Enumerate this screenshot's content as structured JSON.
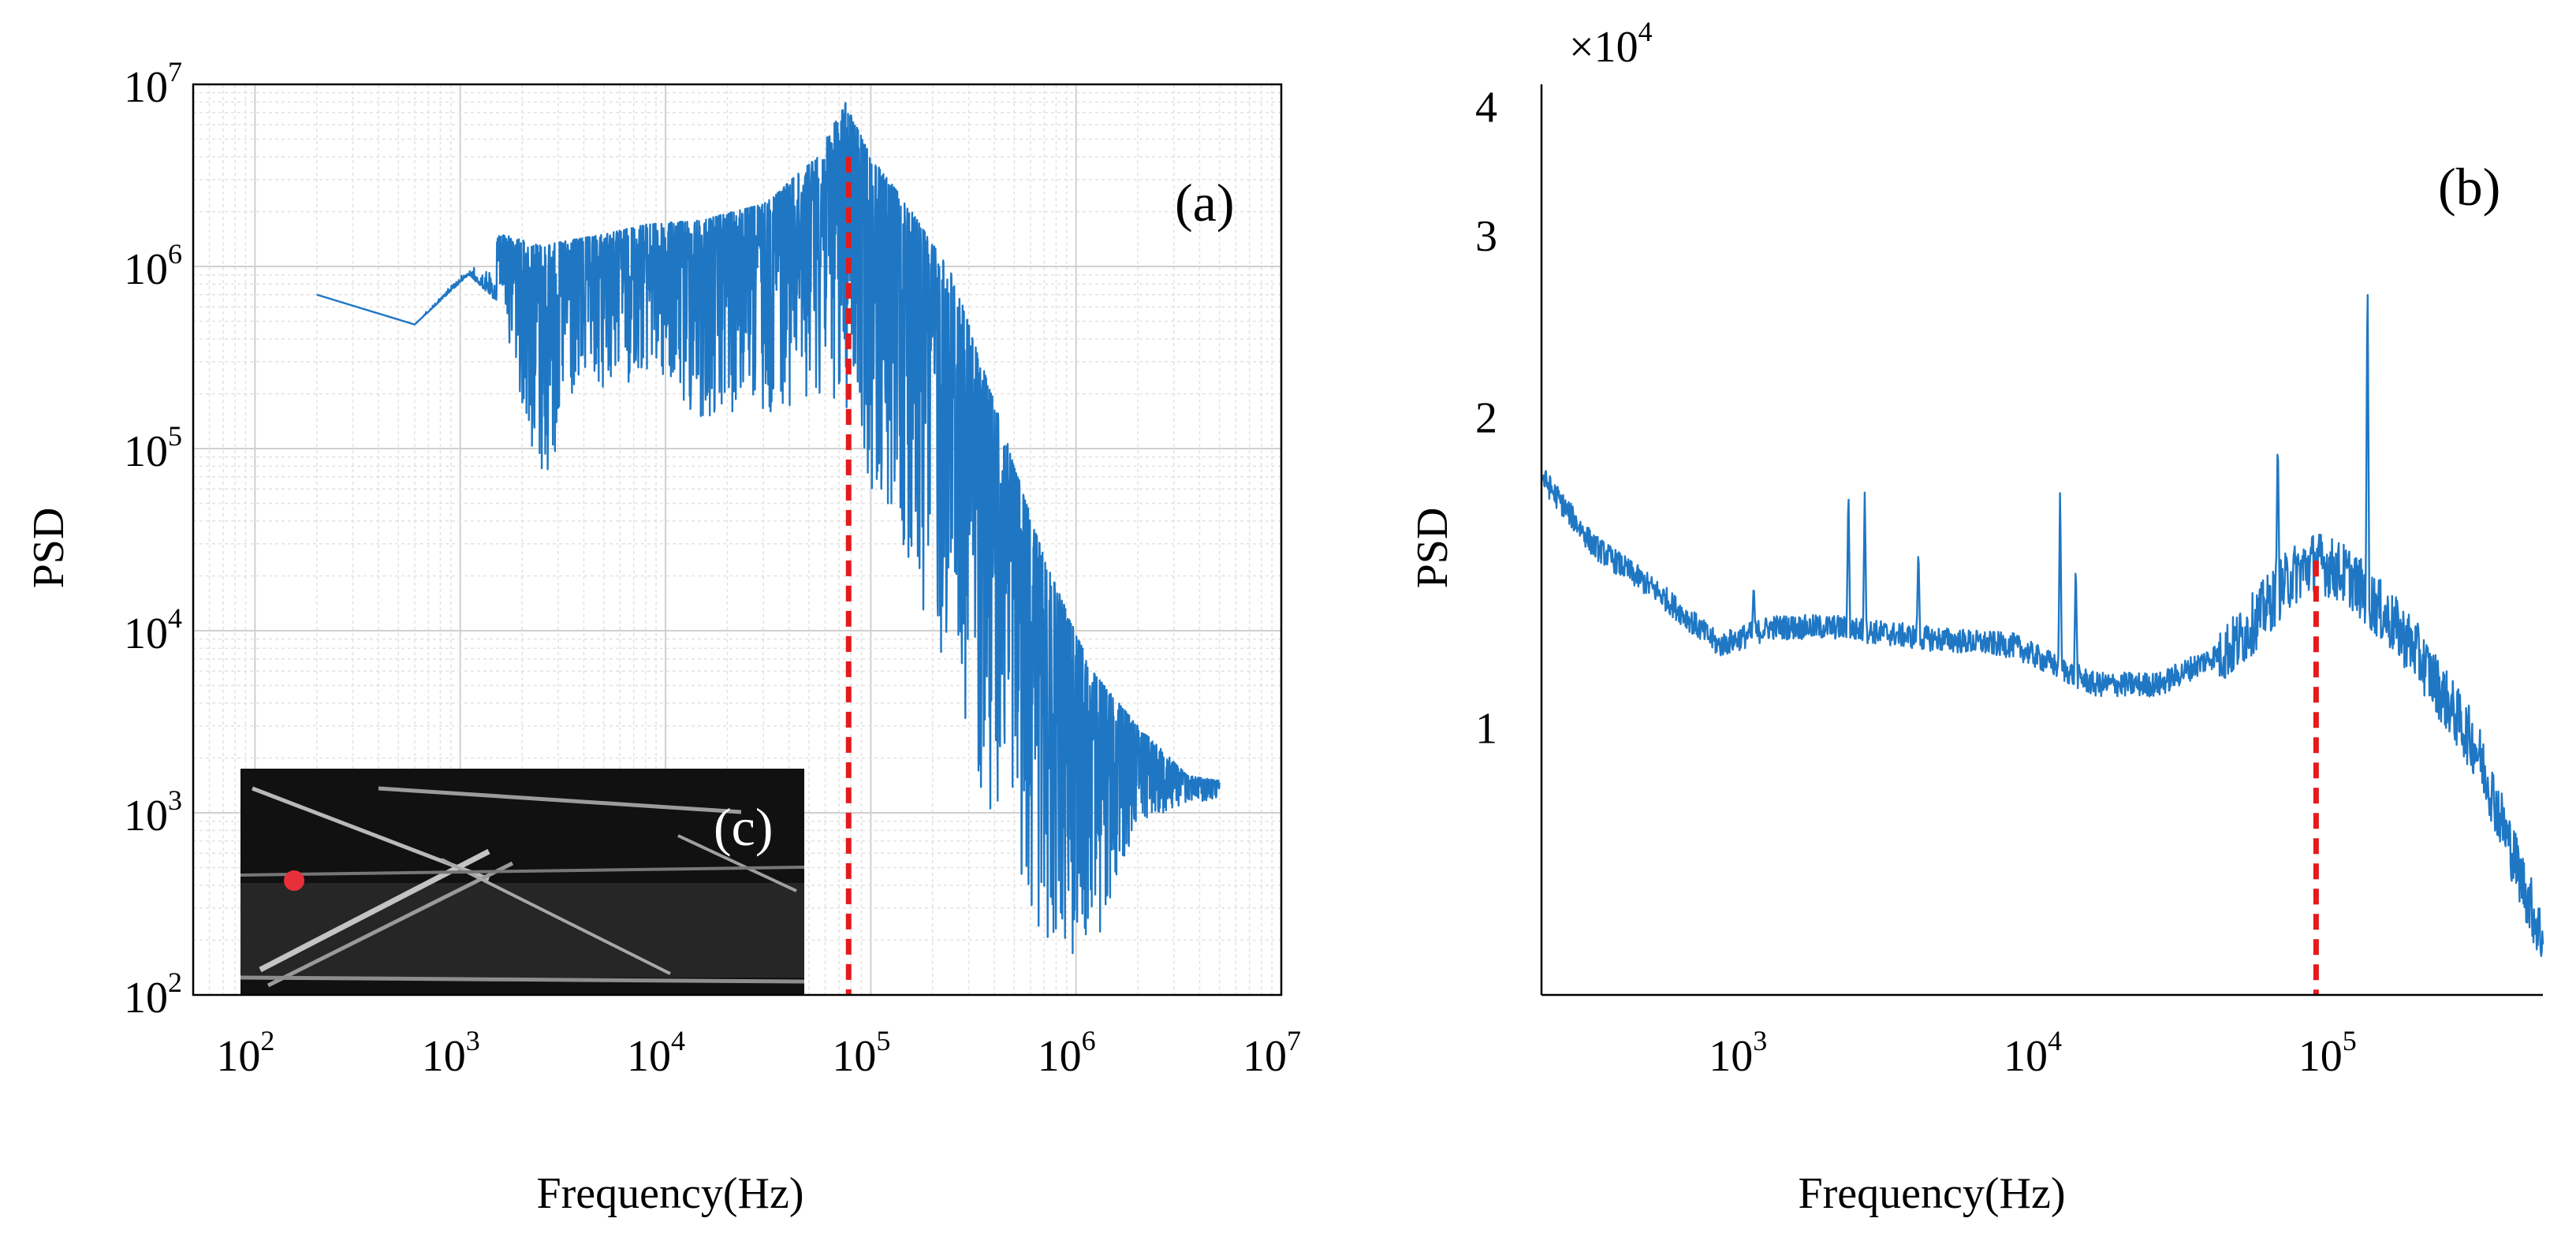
{
  "chart_data": [
    {
      "type": "line",
      "panel": "(a)",
      "xscale": "log",
      "yscale": "log",
      "xlim": [
        50,
        10000000
      ],
      "ylim": [
        100,
        10000000
      ],
      "xlabel": "Frequency(Hz)",
      "ylabel": "PSD",
      "xticks": [
        {
          "base": "10",
          "exp": "2"
        },
        {
          "base": "10",
          "exp": "3"
        },
        {
          "base": "10",
          "exp": "4"
        },
        {
          "base": "10",
          "exp": "5"
        },
        {
          "base": "10",
          "exp": "6"
        },
        {
          "base": "10",
          "exp": "7"
        }
      ],
      "yticks": [
        {
          "base": "10",
          "exp": "2"
        },
        {
          "base": "10",
          "exp": "3"
        },
        {
          "base": "10",
          "exp": "4"
        },
        {
          "base": "10",
          "exp": "5"
        },
        {
          "base": "10",
          "exp": "6"
        },
        {
          "base": "10",
          "exp": "7"
        }
      ],
      "grid": true,
      "series": [
        {
          "name": "PSD",
          "color": "#1f77c4",
          "envelope": {
            "freq": [
              200,
              600,
              1100,
              1600,
              2500,
              3500,
              5000,
              8000,
              15000,
              30000,
              55000,
              75000,
              100000,
              150000,
              250000,
              400000,
              700000,
              1200000,
              2000000,
              3500000,
              5000000
            ],
            "upper": [
              700000,
              480000,
              1200000,
              1500000,
              1300000,
              1400000,
              1500000,
              1700000,
              1800000,
              2200000,
              4000000,
              8000000,
              4000000,
              2200000,
              900000,
              180000,
              25000,
              6000,
              3000,
              1600,
              1500
            ],
            "lower": [
              700000,
              480000,
              900000,
              600000,
              50000,
              150000,
              200000,
              250000,
              120000,
              150000,
              200000,
              150000,
              60000,
              20000,
              4000,
              800,
              200,
              150,
              900,
              1100,
              1200
            ]
          }
        }
      ],
      "annotations": [
        {
          "type": "vline",
          "x": 78000,
          "color": "#e41a1c",
          "style": "dashed"
        }
      ],
      "inset": {
        "label": "(c)",
        "marker_color": "#e8303a"
      }
    },
    {
      "type": "line",
      "panel": "(b)",
      "xscale": "log",
      "yscale": "log",
      "xlim": [
        200,
        500000
      ],
      "ylim": [
        0.55,
        4.2
      ],
      "y_multiplier": {
        "base": "×10",
        "exp": "4"
      },
      "xlabel": "Frequency(Hz)",
      "ylabel": "PSD",
      "xticks": [
        {
          "base": "10",
          "exp": "3"
        },
        {
          "base": "10",
          "exp": "4"
        },
        {
          "base": "10",
          "exp": "5"
        }
      ],
      "yticks": [
        "1",
        "2",
        "3",
        "4"
      ],
      "grid": false,
      "series": [
        {
          "name": "PSD",
          "color": "#1f77c4",
          "baseline": {
            "freq": [
              200,
              300,
              500,
              800,
              1200,
              2000,
              4000,
              8000,
              15000,
              25000,
              45000,
              70000,
              85000,
              110000,
              180000,
              300000,
              500000
            ],
            "value": [
              1.75,
              1.5,
              1.35,
              1.2,
              1.25,
              1.25,
              1.22,
              1.2,
              1.1,
              1.1,
              1.2,
              1.4,
              1.45,
              1.4,
              1.2,
              0.95,
              0.62
            ]
          },
          "peaks": [
            {
              "freq": 1050,
              "value": 1.38
            },
            {
              "freq": 2200,
              "value": 1.72
            },
            {
              "freq": 2500,
              "value": 1.7
            },
            {
              "freq": 3800,
              "value": 1.5
            },
            {
              "freq": 11500,
              "value": 1.72
            },
            {
              "freq": 13000,
              "value": 1.45
            },
            {
              "freq": 63000,
              "value": 1.93
            },
            {
              "freq": 127000,
              "value": 2.8
            }
          ]
        }
      ],
      "annotations": [
        {
          "type": "vline",
          "x": 85000,
          "color": "#e41a1c",
          "style": "dashed"
        }
      ]
    }
  ]
}
